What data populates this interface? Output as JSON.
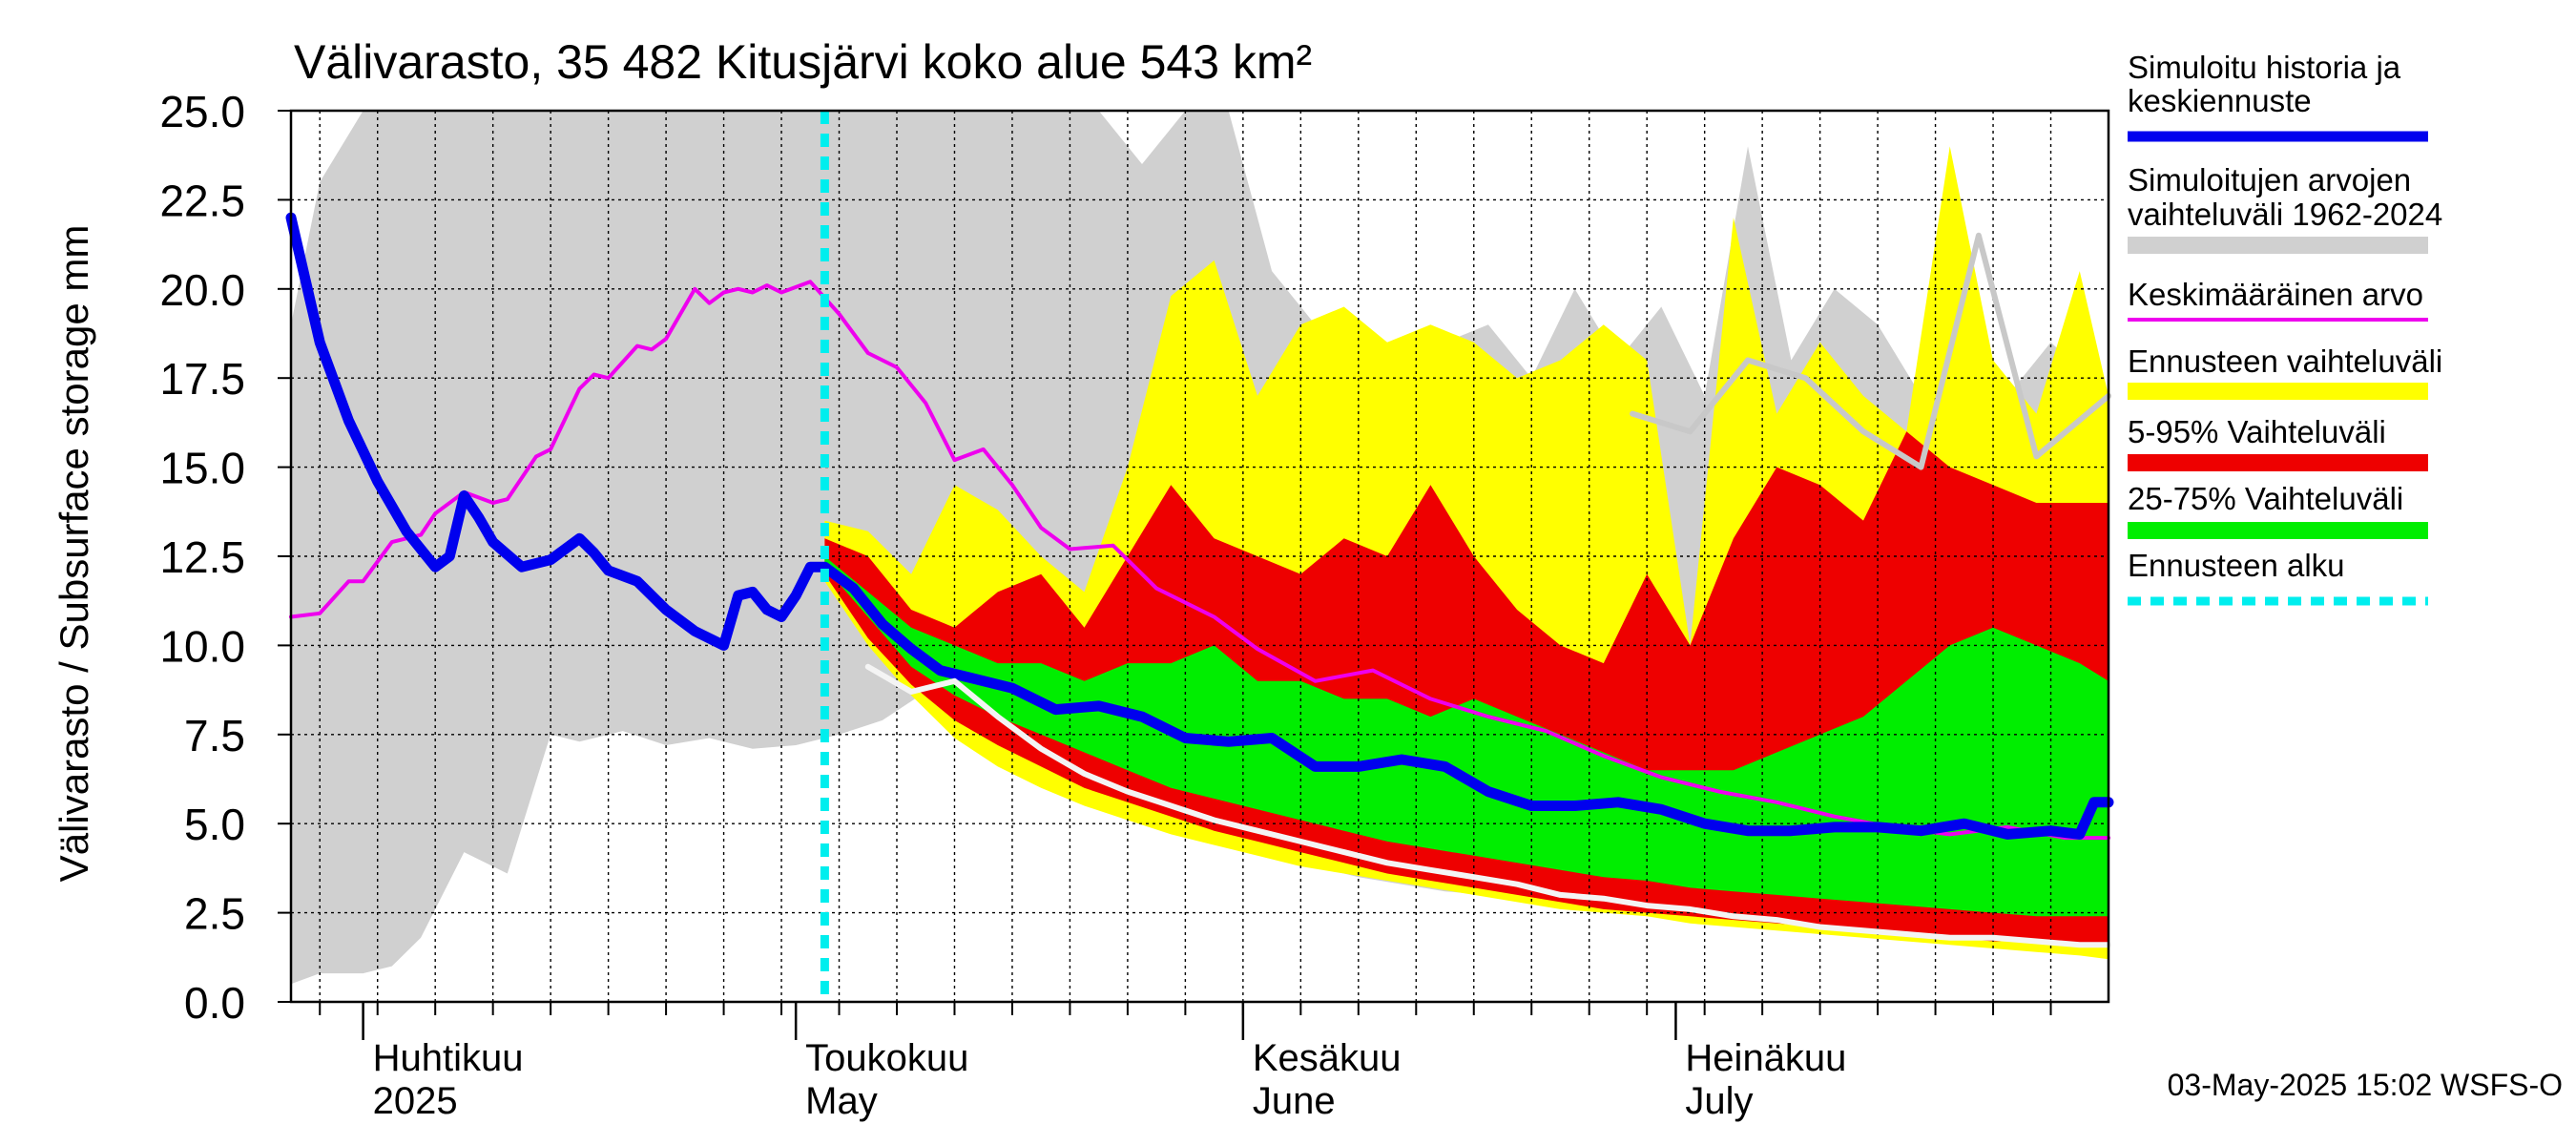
{
  "chart_data": {
    "type": "area",
    "title": "Välivarasto, 35 482 Kitusjärvi koko alue 543 km²",
    "ylabel": "Välivarasto / Subsurface storage  mm",
    "ylim": [
      0,
      25
    ],
    "yticks": [
      "0.0",
      "2.5",
      "5.0",
      "7.5",
      "10.0",
      "12.5",
      "15.0",
      "17.5",
      "20.0",
      "22.5",
      "25.0"
    ],
    "x_range": [
      "2025-03-27",
      "2025-07-31"
    ],
    "month_labels": [
      {
        "date": "2025-04-01",
        "fi": "Huhtikuu",
        "en": "2025"
      },
      {
        "date": "2025-05-01",
        "fi": "Toukokuu",
        "en": "May"
      },
      {
        "date": "2025-06-01",
        "fi": "Kesäkuu",
        "en": "June"
      },
      {
        "date": "2025-07-01",
        "fi": "Heinäkuu",
        "en": "July"
      }
    ],
    "forecast_start": "2025-05-03",
    "footer": "03-May-2025 15:02 WSFS-O",
    "legend": [
      {
        "label": "Simuloitu historia ja keskiennuste",
        "color": "#0000ee",
        "style": "thick"
      },
      {
        "label": "Simuloitujen arvojen vaihteluväli 1962-2024",
        "color": "#d0d0d0",
        "style": "band"
      },
      {
        "label": "Keskimääräinen arvo",
        "color": "#ee00ee",
        "style": "line"
      },
      {
        "label": "Ennusteen vaihteluväli",
        "color": "#ffff00",
        "style": "band"
      },
      {
        "label": "5-95% Vaihteluväli",
        "color": "#ee0000",
        "style": "band"
      },
      {
        "label": "25-75% Vaihteluväli",
        "color": "#00ee00",
        "style": "band"
      },
      {
        "label": "Ennusteen alku",
        "color": "#00eeee",
        "style": "dashed"
      }
    ],
    "series": [
      {
        "name": "Simulotujen arvojen vaihteluväli 1962-2024",
        "kind": "band",
        "color": "#d0d0d0",
        "x": [
          "2025-03-27",
          "2025-03-29",
          "2025-04-01",
          "2025-04-03",
          "2025-04-05",
          "2025-04-08",
          "2025-04-11",
          "2025-04-14",
          "2025-04-16",
          "2025-04-19",
          "2025-04-22",
          "2025-04-25",
          "2025-04-28",
          "2025-05-01",
          "2025-05-04",
          "2025-05-07",
          "2025-05-10",
          "2025-05-13",
          "2025-05-16",
          "2025-05-19",
          "2025-05-22",
          "2025-05-25",
          "2025-05-28",
          "2025-05-31",
          "2025-06-03",
          "2025-06-06",
          "2025-06-09",
          "2025-06-12",
          "2025-06-15",
          "2025-06-18",
          "2025-06-21",
          "2025-06-24",
          "2025-06-27",
          "2025-06-30",
          "2025-07-03",
          "2025-07-06",
          "2025-07-09",
          "2025-07-12",
          "2025-07-15",
          "2025-07-18",
          "2025-07-21",
          "2025-07-24",
          "2025-07-27",
          "2025-07-31"
        ],
        "low": [
          0.5,
          0.8,
          0.8,
          1.0,
          1.8,
          4.2,
          3.6,
          7.5,
          7.3,
          7.6,
          7.2,
          7.4,
          7.1,
          7.2,
          7.5,
          7.9,
          8.7,
          7.6,
          6.8,
          6.1,
          5.6,
          5.2,
          4.8,
          4.4,
          4.1,
          3.8,
          3.5,
          3.3,
          3.1,
          3.0,
          2.8,
          2.6,
          2.5,
          2.4,
          2.3,
          2.2,
          2.1,
          2.0,
          1.9,
          1.8,
          1.7,
          1.6,
          1.5,
          1.4
        ],
        "high": [
          19.0,
          23.0,
          25.0,
          25.0,
          25.0,
          25.0,
          25.0,
          25.0,
          25.0,
          25.0,
          25.0,
          25.0,
          25.0,
          25.0,
          25.0,
          25.0,
          25.0,
          25.0,
          25.0,
          25.0,
          25.0,
          23.5,
          25.0,
          25.0,
          20.5,
          19.0,
          19.0,
          18.0,
          18.5,
          19.0,
          17.5,
          20.0,
          18.0,
          19.5,
          17.0,
          24.0,
          18.0,
          20.0,
          19.0,
          17.0,
          17.5,
          17.0,
          18.5,
          17.0
        ]
      },
      {
        "name": "Ennusteen vaihteluväli",
        "kind": "band",
        "color": "#ffff00",
        "x": [
          "2025-05-03",
          "2025-05-06",
          "2025-05-09",
          "2025-05-12",
          "2025-05-15",
          "2025-05-18",
          "2025-05-21",
          "2025-05-24",
          "2025-05-27",
          "2025-05-30",
          "2025-06-02",
          "2025-06-05",
          "2025-06-08",
          "2025-06-11",
          "2025-06-14",
          "2025-06-17",
          "2025-06-20",
          "2025-06-23",
          "2025-06-26",
          "2025-06-29",
          "2025-07-02",
          "2025-07-05",
          "2025-07-08",
          "2025-07-11",
          "2025-07-14",
          "2025-07-17",
          "2025-07-20",
          "2025-07-23",
          "2025-07-26",
          "2025-07-29",
          "2025-07-31"
        ],
        "low": [
          11.8,
          10.0,
          8.6,
          7.4,
          6.6,
          6.0,
          5.5,
          5.1,
          4.7,
          4.4,
          4.1,
          3.8,
          3.6,
          3.4,
          3.2,
          3.0,
          2.8,
          2.6,
          2.5,
          2.4,
          2.2,
          2.1,
          2.0,
          1.9,
          1.8,
          1.7,
          1.6,
          1.5,
          1.4,
          1.3,
          1.2
        ],
        "high": [
          13.5,
          13.2,
          12.0,
          14.5,
          13.8,
          12.5,
          11.5,
          15.0,
          19.8,
          20.8,
          17.0,
          19.0,
          19.5,
          18.5,
          19.0,
          18.5,
          17.5,
          18.0,
          19.0,
          18.0,
          10.0,
          22.0,
          16.5,
          18.5,
          17.0,
          16.0,
          24.0,
          18.0,
          16.5,
          20.5,
          17.0
        ]
      },
      {
        "name": "5-95% Vaihteluväli",
        "kind": "band",
        "color": "#ee0000",
        "x": [
          "2025-05-03",
          "2025-05-06",
          "2025-05-09",
          "2025-05-12",
          "2025-05-15",
          "2025-05-18",
          "2025-05-21",
          "2025-05-24",
          "2025-05-27",
          "2025-05-30",
          "2025-06-02",
          "2025-06-05",
          "2025-06-08",
          "2025-06-11",
          "2025-06-14",
          "2025-06-17",
          "2025-06-20",
          "2025-06-23",
          "2025-06-26",
          "2025-06-29",
          "2025-07-02",
          "2025-07-05",
          "2025-07-08",
          "2025-07-11",
          "2025-07-14",
          "2025-07-17",
          "2025-07-20",
          "2025-07-23",
          "2025-07-26",
          "2025-07-29",
          "2025-07-31"
        ],
        "low": [
          12.0,
          10.2,
          8.9,
          7.9,
          7.2,
          6.6,
          6.0,
          5.6,
          5.2,
          4.8,
          4.5,
          4.2,
          3.9,
          3.6,
          3.4,
          3.2,
          3.0,
          2.8,
          2.6,
          2.5,
          2.4,
          2.3,
          2.2,
          2.1,
          2.0,
          1.9,
          1.8,
          1.7,
          1.7,
          1.6,
          1.6
        ],
        "high": [
          13.0,
          12.5,
          11.0,
          10.5,
          11.5,
          12.0,
          10.5,
          12.5,
          14.5,
          13.0,
          12.5,
          12.0,
          13.0,
          12.5,
          14.5,
          12.5,
          11.0,
          10.0,
          9.5,
          12.0,
          10.0,
          13.0,
          15.0,
          14.5,
          13.5,
          16.0,
          15.0,
          14.5,
          14.0,
          14.0,
          14.0
        ]
      },
      {
        "name": "25-75% Vaihteluväli",
        "kind": "band",
        "color": "#00ee00",
        "x": [
          "2025-05-03",
          "2025-05-06",
          "2025-05-09",
          "2025-05-12",
          "2025-05-15",
          "2025-05-18",
          "2025-05-21",
          "2025-05-24",
          "2025-05-27",
          "2025-05-30",
          "2025-06-02",
          "2025-06-05",
          "2025-06-08",
          "2025-06-11",
          "2025-06-14",
          "2025-06-17",
          "2025-06-20",
          "2025-06-23",
          "2025-06-26",
          "2025-06-29",
          "2025-07-02",
          "2025-07-05",
          "2025-07-08",
          "2025-07-11",
          "2025-07-14",
          "2025-07-17",
          "2025-07-20",
          "2025-07-23",
          "2025-07-26",
          "2025-07-29",
          "2025-07-31"
        ],
        "low": [
          12.2,
          10.8,
          9.4,
          8.6,
          8.0,
          7.5,
          7.0,
          6.5,
          6.0,
          5.7,
          5.4,
          5.1,
          4.8,
          4.5,
          4.3,
          4.1,
          3.9,
          3.7,
          3.5,
          3.4,
          3.2,
          3.1,
          3.0,
          2.9,
          2.8,
          2.7,
          2.6,
          2.5,
          2.4,
          2.4,
          2.4
        ],
        "high": [
          12.5,
          11.5,
          10.5,
          10.0,
          9.5,
          9.5,
          9.0,
          9.5,
          9.5,
          10.0,
          9.0,
          9.0,
          8.5,
          8.5,
          8.0,
          8.5,
          8.0,
          7.5,
          7.0,
          6.5,
          6.5,
          6.5,
          7.0,
          7.5,
          8.0,
          9.0,
          10.0,
          10.5,
          10.0,
          9.5,
          9.0
        ]
      },
      {
        "name": "Keskimääräinen arvo",
        "kind": "line",
        "color": "#ee00ee",
        "x": [
          "2025-03-27",
          "2025-03-29",
          "2025-03-31",
          "2025-04-01",
          "2025-04-03",
          "2025-04-05",
          "2025-04-06",
          "2025-04-08",
          "2025-04-10",
          "2025-04-11",
          "2025-04-13",
          "2025-04-14",
          "2025-04-16",
          "2025-04-17",
          "2025-04-18",
          "2025-04-20",
          "2025-04-21",
          "2025-04-22",
          "2025-04-24",
          "2025-04-25",
          "2025-04-26",
          "2025-04-27",
          "2025-04-28",
          "2025-04-29",
          "2025-04-30",
          "2025-05-02",
          "2025-05-04",
          "2025-05-06",
          "2025-05-08",
          "2025-05-10",
          "2025-05-12",
          "2025-05-14",
          "2025-05-16",
          "2025-05-18",
          "2025-05-20",
          "2025-05-23",
          "2025-05-26",
          "2025-05-30",
          "2025-06-02",
          "2025-06-06",
          "2025-06-10",
          "2025-06-14",
          "2025-06-18",
          "2025-06-22",
          "2025-06-26",
          "2025-06-30",
          "2025-07-04",
          "2025-07-08",
          "2025-07-12",
          "2025-07-16",
          "2025-07-20",
          "2025-07-24",
          "2025-07-28",
          "2025-07-31"
        ],
        "values": [
          10.8,
          10.9,
          11.8,
          11.8,
          12.9,
          13.1,
          13.7,
          14.3,
          14.0,
          14.1,
          15.3,
          15.5,
          17.2,
          17.6,
          17.5,
          18.4,
          18.3,
          18.6,
          20.0,
          19.6,
          19.9,
          20.0,
          19.9,
          20.1,
          19.9,
          20.2,
          19.3,
          18.2,
          17.8,
          16.8,
          15.2,
          15.5,
          14.5,
          13.3,
          12.7,
          12.8,
          11.6,
          10.8,
          9.9,
          9.0,
          9.3,
          8.5,
          8.0,
          7.6,
          6.9,
          6.3,
          5.9,
          5.6,
          5.2,
          4.9,
          4.7,
          4.9,
          4.6,
          4.6
        ]
      },
      {
        "name": "Simuloitu historia ja keskiennuste",
        "kind": "thick",
        "color": "#0000ee",
        "x": [
          "2025-03-27",
          "2025-03-29",
          "2025-03-31",
          "2025-04-02",
          "2025-04-04",
          "2025-04-06",
          "2025-04-07",
          "2025-04-08",
          "2025-04-09",
          "2025-04-10",
          "2025-04-12",
          "2025-04-14",
          "2025-04-16",
          "2025-04-17",
          "2025-04-18",
          "2025-04-20",
          "2025-04-22",
          "2025-04-24",
          "2025-04-26",
          "2025-04-27",
          "2025-04-28",
          "2025-04-29",
          "2025-04-30",
          "2025-05-01",
          "2025-05-02",
          "2025-05-03",
          "2025-05-05",
          "2025-05-07",
          "2025-05-09",
          "2025-05-11",
          "2025-05-13",
          "2025-05-16",
          "2025-05-19",
          "2025-05-22",
          "2025-05-25",
          "2025-05-28",
          "2025-05-31",
          "2025-06-03",
          "2025-06-06",
          "2025-06-09",
          "2025-06-12",
          "2025-06-15",
          "2025-06-18",
          "2025-06-21",
          "2025-06-24",
          "2025-06-27",
          "2025-06-30",
          "2025-07-03",
          "2025-07-06",
          "2025-07-09",
          "2025-07-12",
          "2025-07-15",
          "2025-07-18",
          "2025-07-21",
          "2025-07-24",
          "2025-07-27",
          "2025-07-29",
          "2025-07-30",
          "2025-07-31"
        ],
        "values": [
          22.0,
          18.5,
          16.3,
          14.6,
          13.2,
          12.2,
          12.5,
          14.2,
          13.6,
          12.9,
          12.2,
          12.4,
          13.0,
          12.6,
          12.1,
          11.8,
          11.0,
          10.4,
          10.0,
          11.4,
          11.5,
          11.0,
          10.8,
          11.4,
          12.2,
          12.2,
          11.6,
          10.6,
          9.9,
          9.3,
          9.1,
          8.8,
          8.2,
          8.3,
          8.0,
          7.4,
          7.3,
          7.4,
          6.6,
          6.6,
          6.8,
          6.6,
          5.9,
          5.5,
          5.5,
          5.6,
          5.4,
          5.0,
          4.8,
          4.8,
          4.9,
          4.9,
          4.8,
          5.0,
          4.7,
          4.8,
          4.7,
          5.6,
          5.6
        ]
      },
      {
        "name": "Minimum",
        "kind": "line",
        "color": "#f4f4f4",
        "x": [
          "2025-05-06",
          "2025-05-09",
          "2025-05-12",
          "2025-05-15",
          "2025-05-18",
          "2025-05-21",
          "2025-05-24",
          "2025-05-27",
          "2025-05-30",
          "2025-06-02",
          "2025-06-05",
          "2025-06-08",
          "2025-06-11",
          "2025-06-14",
          "2025-06-17",
          "2025-06-20",
          "2025-06-23",
          "2025-06-26",
          "2025-06-29",
          "2025-07-02",
          "2025-07-05",
          "2025-07-08",
          "2025-07-11",
          "2025-07-14",
          "2025-07-17",
          "2025-07-20",
          "2025-07-23",
          "2025-07-26",
          "2025-07-29",
          "2025-07-31"
        ],
        "values": [
          9.4,
          8.7,
          9.0,
          8.0,
          7.1,
          6.4,
          5.9,
          5.5,
          5.1,
          4.8,
          4.5,
          4.2,
          3.9,
          3.7,
          3.5,
          3.3,
          3.0,
          2.9,
          2.7,
          2.6,
          2.4,
          2.3,
          2.1,
          2.0,
          1.9,
          1.8,
          1.8,
          1.7,
          1.6,
          1.6
        ]
      },
      {
        "name": "Gray max line",
        "kind": "line",
        "color": "#c8c8c8",
        "x": [
          "2025-06-28",
          "2025-07-02",
          "2025-07-06",
          "2025-07-10",
          "2025-07-14",
          "2025-07-18",
          "2025-07-22",
          "2025-07-26",
          "2025-07-31"
        ],
        "values": [
          16.5,
          16.0,
          18.0,
          17.5,
          16.0,
          15.0,
          21.5,
          15.3,
          17.0
        ]
      }
    ]
  }
}
